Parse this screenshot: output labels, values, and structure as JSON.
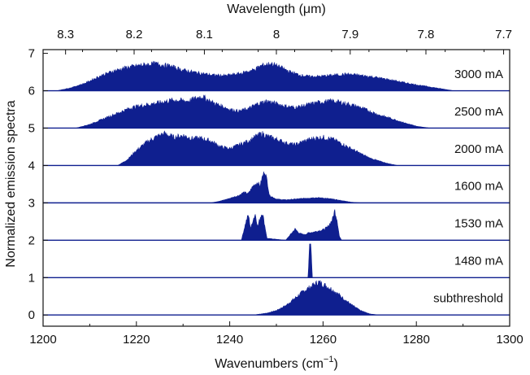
{
  "chart_data": {
    "type": "area",
    "color": "#0f1f8f",
    "xlabel": "Wavenumbers (cm",
    "xlabel_sup": "−1",
    "xlabel_end": ")",
    "x2label": "Wavelength (μm)",
    "ylabel": "Normalized emission spectra",
    "xlim": [
      1200,
      1300
    ],
    "ylim": [
      -0.3,
      7.1
    ],
    "x_ticks": [
      1200,
      1220,
      1240,
      1260,
      1280,
      1300
    ],
    "x_tick_labels": [
      "1200",
      "1220",
      "1240",
      "1260",
      "1280",
      "1300"
    ],
    "y_ticks": [
      0,
      1,
      2,
      3,
      4,
      5,
      6,
      7
    ],
    "y_tick_labels": [
      "0",
      "1",
      "2",
      "3",
      "4",
      "5",
      "6",
      "7"
    ],
    "x2_ticks": [
      8.3,
      8.2,
      8.1,
      8.0,
      7.9,
      7.8,
      7.7
    ],
    "x2_tick_labels": [
      "8.3",
      "8.2",
      "8.1",
      "8",
      "7.9",
      "7.8",
      "7.7"
    ],
    "series": [
      {
        "name": "subthreshold",
        "baseline": 0,
        "label_y": 0.45,
        "points": [
          [
            1200,
            0
          ],
          [
            1245,
            0
          ],
          [
            1248,
            0.05
          ],
          [
            1250,
            0.12
          ],
          [
            1252,
            0.25
          ],
          [
            1254,
            0.45
          ],
          [
            1256,
            0.65
          ],
          [
            1258,
            0.8
          ],
          [
            1259,
            0.88
          ],
          [
            1260,
            0.82
          ],
          [
            1262,
            0.68
          ],
          [
            1264,
            0.48
          ],
          [
            1266,
            0.28
          ],
          [
            1268,
            0.12
          ],
          [
            1270,
            0.03
          ],
          [
            1272,
            0
          ],
          [
            1300,
            0
          ]
        ]
      },
      {
        "name": "1480 mA",
        "baseline": 1,
        "label_y": 1.45,
        "points": [
          [
            1200,
            0
          ],
          [
            1256.8,
            0
          ],
          [
            1257.1,
            0.9
          ],
          [
            1257.4,
            0.9
          ],
          [
            1257.7,
            0
          ],
          [
            1300,
            0
          ]
        ]
      },
      {
        "name": "1530 mA",
        "baseline": 2,
        "label_y": 2.45,
        "points": [
          [
            1200,
            0
          ],
          [
            1242.5,
            0
          ],
          [
            1243.5,
            0.5
          ],
          [
            1244,
            0.68
          ],
          [
            1244.5,
            0.3
          ],
          [
            1245,
            0.55
          ],
          [
            1245.5,
            0.7
          ],
          [
            1246,
            0.35
          ],
          [
            1246.5,
            0.6
          ],
          [
            1247,
            0.75
          ],
          [
            1247.5,
            0.4
          ],
          [
            1248,
            0.05
          ],
          [
            1252,
            0
          ],
          [
            1253,
            0.15
          ],
          [
            1254,
            0.3
          ],
          [
            1255,
            0.18
          ],
          [
            1256,
            0.15
          ],
          [
            1257,
            0.2
          ],
          [
            1258,
            0.22
          ],
          [
            1259,
            0.25
          ],
          [
            1260,
            0.28
          ],
          [
            1261,
            0.35
          ],
          [
            1262,
            0.55
          ],
          [
            1262.5,
            0.8
          ],
          [
            1263,
            0.55
          ],
          [
            1263.5,
            0.1
          ],
          [
            1264,
            0
          ],
          [
            1300,
            0
          ]
        ]
      },
      {
        "name": "1600 mA",
        "baseline": 3,
        "label_y": 3.45,
        "points": [
          [
            1200,
            0
          ],
          [
            1236,
            0
          ],
          [
            1238,
            0.05
          ],
          [
            1240,
            0.12
          ],
          [
            1242,
            0.2
          ],
          [
            1243,
            0.28
          ],
          [
            1244,
            0.25
          ],
          [
            1245,
            0.45
          ],
          [
            1246,
            0.55
          ],
          [
            1246.5,
            0.45
          ],
          [
            1247,
            0.7
          ],
          [
            1247.5,
            0.85
          ],
          [
            1248,
            0.6
          ],
          [
            1248.5,
            0.2
          ],
          [
            1250,
            0.1
          ],
          [
            1252,
            0.08
          ],
          [
            1254,
            0.1
          ],
          [
            1256,
            0.12
          ],
          [
            1258,
            0.14
          ],
          [
            1260,
            0.13
          ],
          [
            1262,
            0.1
          ],
          [
            1264,
            0.06
          ],
          [
            1266,
            0.02
          ],
          [
            1268,
            0
          ],
          [
            1300,
            0
          ]
        ]
      },
      {
        "name": "2000 mA",
        "baseline": 4,
        "label_y": 4.45,
        "points": [
          [
            1200,
            0
          ],
          [
            1216,
            0
          ],
          [
            1218,
            0.15
          ],
          [
            1220,
            0.4
          ],
          [
            1222,
            0.6
          ],
          [
            1224,
            0.75
          ],
          [
            1226,
            0.85
          ],
          [
            1228,
            0.75
          ],
          [
            1230,
            0.8
          ],
          [
            1232,
            0.72
          ],
          [
            1234,
            0.72
          ],
          [
            1236,
            0.65
          ],
          [
            1238,
            0.5
          ],
          [
            1240,
            0.45
          ],
          [
            1242,
            0.55
          ],
          [
            1244,
            0.65
          ],
          [
            1246,
            0.8
          ],
          [
            1247,
            0.85
          ],
          [
            1248,
            0.78
          ],
          [
            1250,
            0.7
          ],
          [
            1252,
            0.6
          ],
          [
            1254,
            0.55
          ],
          [
            1256,
            0.65
          ],
          [
            1258,
            0.72
          ],
          [
            1260,
            0.75
          ],
          [
            1262,
            0.7
          ],
          [
            1264,
            0.58
          ],
          [
            1266,
            0.45
          ],
          [
            1268,
            0.32
          ],
          [
            1270,
            0.2
          ],
          [
            1272,
            0.12
          ],
          [
            1274,
            0.05
          ],
          [
            1276,
            0
          ],
          [
            1300,
            0
          ]
        ]
      },
      {
        "name": "2500 mA",
        "baseline": 5,
        "label_y": 5.45,
        "points": [
          [
            1200,
            0
          ],
          [
            1207,
            0
          ],
          [
            1210,
            0.1
          ],
          [
            1213,
            0.25
          ],
          [
            1216,
            0.4
          ],
          [
            1219,
            0.55
          ],
          [
            1222,
            0.62
          ],
          [
            1225,
            0.68
          ],
          [
            1228,
            0.75
          ],
          [
            1231,
            0.72
          ],
          [
            1234,
            0.85
          ],
          [
            1236,
            0.7
          ],
          [
            1238,
            0.6
          ],
          [
            1240,
            0.5
          ],
          [
            1242,
            0.45
          ],
          [
            1244,
            0.52
          ],
          [
            1246,
            0.65
          ],
          [
            1248,
            0.72
          ],
          [
            1250,
            0.65
          ],
          [
            1252,
            0.58
          ],
          [
            1254,
            0.55
          ],
          [
            1256,
            0.6
          ],
          [
            1258,
            0.66
          ],
          [
            1260,
            0.7
          ],
          [
            1262,
            0.72
          ],
          [
            1264,
            0.68
          ],
          [
            1266,
            0.62
          ],
          [
            1268,
            0.55
          ],
          [
            1270,
            0.45
          ],
          [
            1272,
            0.35
          ],
          [
            1274,
            0.28
          ],
          [
            1276,
            0.2
          ],
          [
            1278,
            0.12
          ],
          [
            1280,
            0.05
          ],
          [
            1283,
            0
          ],
          [
            1300,
            0
          ]
        ]
      },
      {
        "name": "3000 mA",
        "baseline": 6,
        "label_y": 6.45,
        "points": [
          [
            1200,
            0
          ],
          [
            1203,
            0
          ],
          [
            1206,
            0.08
          ],
          [
            1209,
            0.2
          ],
          [
            1212,
            0.38
          ],
          [
            1215,
            0.52
          ],
          [
            1218,
            0.62
          ],
          [
            1221,
            0.68
          ],
          [
            1224,
            0.72
          ],
          [
            1227,
            0.66
          ],
          [
            1230,
            0.55
          ],
          [
            1233,
            0.48
          ],
          [
            1236,
            0.42
          ],
          [
            1239,
            0.4
          ],
          [
            1242,
            0.45
          ],
          [
            1245,
            0.55
          ],
          [
            1247,
            0.68
          ],
          [
            1249,
            0.72
          ],
          [
            1251,
            0.62
          ],
          [
            1253,
            0.5
          ],
          [
            1255,
            0.42
          ],
          [
            1257,
            0.38
          ],
          [
            1259,
            0.38
          ],
          [
            1261,
            0.4
          ],
          [
            1263,
            0.42
          ],
          [
            1265,
            0.44
          ],
          [
            1267,
            0.42
          ],
          [
            1270,
            0.38
          ],
          [
            1273,
            0.32
          ],
          [
            1276,
            0.25
          ],
          [
            1279,
            0.18
          ],
          [
            1282,
            0.12
          ],
          [
            1285,
            0.06
          ],
          [
            1288,
            0
          ],
          [
            1300,
            0
          ]
        ]
      }
    ]
  }
}
